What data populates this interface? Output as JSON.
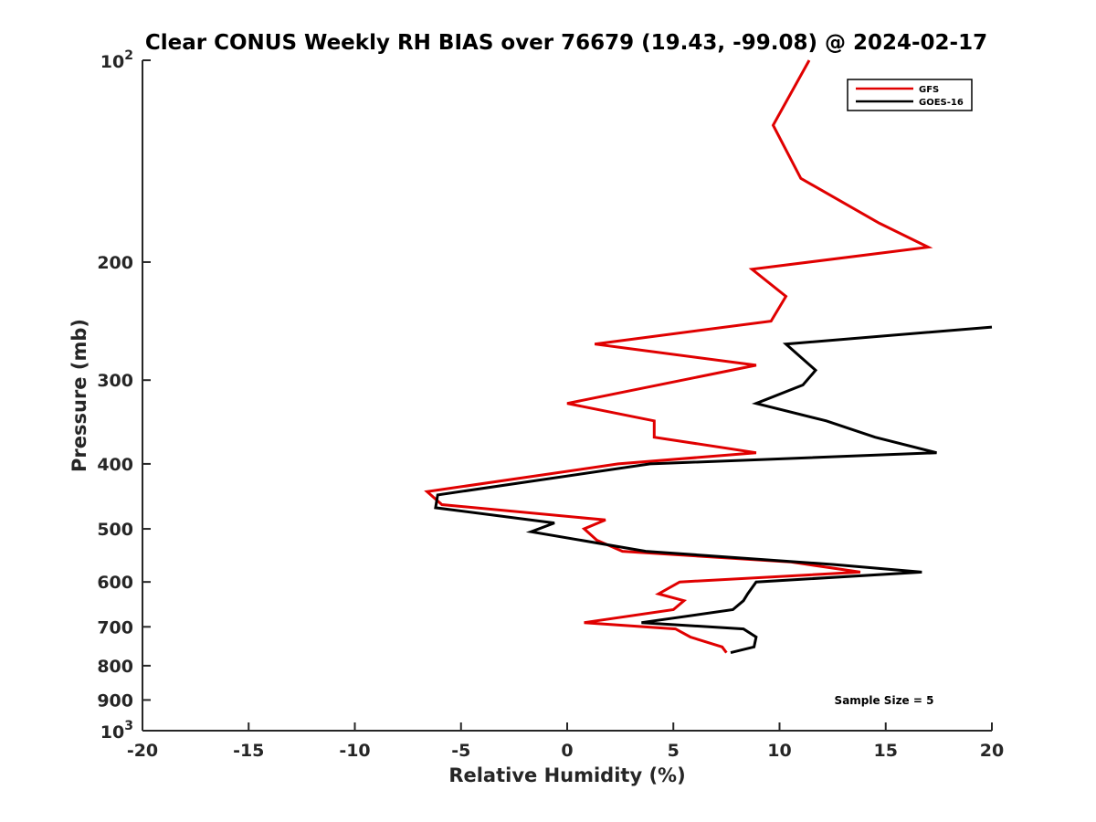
{
  "chart_data": {
    "type": "line",
    "title": "Clear CONUS Weekly RH BIAS over 76679 (19.43, -99.08) @ 2024-02-17",
    "xlabel": "Relative Humidity (%)",
    "ylabel": "Pressure (mb)",
    "xlim": [
      -20,
      20
    ],
    "ylim": [
      100,
      1000
    ],
    "y_scale": "log",
    "y_reversed": true,
    "grid": false,
    "legend_position": "top-right",
    "x_ticks": [
      "-20",
      "-15",
      "-10",
      "-5",
      "0",
      "5",
      "10",
      "15",
      "20"
    ],
    "y_ticks": [
      {
        "value": 100,
        "base": "10",
        "exp": "2"
      },
      {
        "value": 200,
        "label": "200"
      },
      {
        "value": 300,
        "label": "300"
      },
      {
        "value": 400,
        "label": "400"
      },
      {
        "value": 500,
        "label": "500"
      },
      {
        "value": 600,
        "label": "600"
      },
      {
        "value": 700,
        "label": "700"
      },
      {
        "value": 800,
        "label": "800"
      },
      {
        "value": 900,
        "label": "900"
      },
      {
        "value": 1000,
        "base": "10",
        "exp": "3"
      }
    ],
    "series": [
      {
        "name": "GFS",
        "color": "#e00000",
        "points": [
          [
            11.4,
            100
          ],
          [
            9.7,
            125
          ],
          [
            11.0,
            150
          ],
          [
            14.7,
            175
          ],
          [
            17.0,
            190
          ],
          [
            8.7,
            205
          ],
          [
            10.3,
            225
          ],
          [
            9.6,
            245
          ],
          [
            1.3,
            265
          ],
          [
            8.9,
            285
          ],
          [
            0.0,
            325
          ],
          [
            4.1,
            345
          ],
          [
            4.1,
            365
          ],
          [
            8.9,
            385
          ],
          [
            2.4,
            400
          ],
          [
            -6.6,
            440
          ],
          [
            -5.9,
            460
          ],
          [
            1.8,
            485
          ],
          [
            0.8,
            500
          ],
          [
            1.4,
            520
          ],
          [
            2.6,
            540
          ],
          [
            10.5,
            560
          ],
          [
            13.8,
            580
          ],
          [
            5.3,
            600
          ],
          [
            4.3,
            625
          ],
          [
            5.5,
            640
          ],
          [
            5.0,
            660
          ],
          [
            0.8,
            690
          ],
          [
            5.1,
            705
          ],
          [
            5.8,
            725
          ],
          [
            7.3,
            750
          ],
          [
            7.5,
            765
          ]
        ]
      },
      {
        "name": "GOES-16",
        "color": "#000000",
        "points": [
          [
            20.0,
            250
          ],
          [
            10.3,
            265
          ],
          [
            11.7,
            290
          ],
          [
            11.1,
            305
          ],
          [
            8.9,
            325
          ],
          [
            12.2,
            345
          ],
          [
            14.5,
            365
          ],
          [
            17.4,
            385
          ],
          [
            3.9,
            400
          ],
          [
            -6.1,
            445
          ],
          [
            -6.2,
            465
          ],
          [
            -0.6,
            490
          ],
          [
            -1.7,
            505
          ],
          [
            3.7,
            540
          ],
          [
            12.5,
            565
          ],
          [
            16.7,
            580
          ],
          [
            8.9,
            600
          ],
          [
            8.5,
            625
          ],
          [
            8.3,
            640
          ],
          [
            7.8,
            660
          ],
          [
            3.5,
            690
          ],
          [
            8.3,
            705
          ],
          [
            8.9,
            725
          ],
          [
            8.8,
            750
          ],
          [
            7.7,
            765
          ]
        ]
      }
    ],
    "annotations": [
      "Sample Size = 5"
    ]
  }
}
